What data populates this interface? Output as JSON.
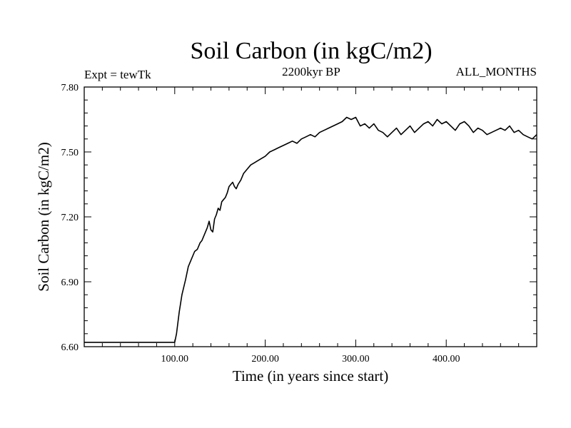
{
  "chart_data": {
    "type": "line",
    "title": "Soil Carbon (in kgC/m2)",
    "subtitle": "2200kyr BP",
    "left_label": "Expt = tewTk",
    "right_label": "ALL_MONTHS",
    "xlabel": "Time (in years since start)",
    "ylabel": "Soil Carbon (in kgC/m2)",
    "xlim": [
      0,
      500
    ],
    "ylim": [
      6.6,
      7.8
    ],
    "x_ticks": [
      100,
      200,
      300,
      400
    ],
    "x_tick_labels": [
      "100.00",
      "200.00",
      "300.00",
      "400.00"
    ],
    "y_ticks": [
      6.6,
      6.9,
      7.2,
      7.5,
      7.8
    ],
    "y_tick_labels": [
      "6.60",
      "6.90",
      "7.20",
      "7.50",
      "7.80"
    ],
    "series": [
      {
        "name": "Soil Carbon",
        "x": [
          0,
          100,
          102,
          105,
          108,
          112,
          115,
          118,
          122,
          125,
          128,
          130,
          133,
          136,
          138,
          140,
          142,
          144,
          146,
          148,
          150,
          152,
          154,
          156,
          158,
          160,
          162,
          164,
          166,
          168,
          170,
          173,
          176,
          180,
          184,
          188,
          192,
          196,
          200,
          205,
          210,
          215,
          220,
          225,
          230,
          235,
          240,
          245,
          250,
          255,
          260,
          265,
          270,
          275,
          280,
          285,
          290,
          295,
          300,
          305,
          310,
          315,
          320,
          325,
          330,
          335,
          340,
          345,
          350,
          355,
          360,
          365,
          370,
          375,
          380,
          385,
          390,
          395,
          400,
          405,
          410,
          415,
          420,
          425,
          430,
          435,
          440,
          445,
          450,
          455,
          460,
          465,
          470,
          475,
          480,
          485,
          490,
          495,
          500
        ],
        "values": [
          6.62,
          6.62,
          6.66,
          6.76,
          6.84,
          6.91,
          6.97,
          7.0,
          7.04,
          7.05,
          7.08,
          7.09,
          7.12,
          7.15,
          7.18,
          7.14,
          7.13,
          7.19,
          7.21,
          7.24,
          7.23,
          7.27,
          7.28,
          7.29,
          7.31,
          7.34,
          7.35,
          7.36,
          7.34,
          7.33,
          7.35,
          7.37,
          7.4,
          7.42,
          7.44,
          7.45,
          7.46,
          7.47,
          7.48,
          7.5,
          7.51,
          7.52,
          7.53,
          7.54,
          7.55,
          7.54,
          7.56,
          7.57,
          7.58,
          7.57,
          7.59,
          7.6,
          7.61,
          7.62,
          7.63,
          7.64,
          7.66,
          7.65,
          7.66,
          7.62,
          7.63,
          7.61,
          7.63,
          7.6,
          7.59,
          7.57,
          7.59,
          7.61,
          7.58,
          7.6,
          7.62,
          7.59,
          7.61,
          7.63,
          7.64,
          7.62,
          7.65,
          7.63,
          7.64,
          7.62,
          7.6,
          7.63,
          7.64,
          7.62,
          7.59,
          7.61,
          7.6,
          7.58,
          7.59,
          7.6,
          7.61,
          7.6,
          7.62,
          7.59,
          7.6,
          7.58,
          7.57,
          7.56,
          7.58
        ]
      }
    ]
  }
}
